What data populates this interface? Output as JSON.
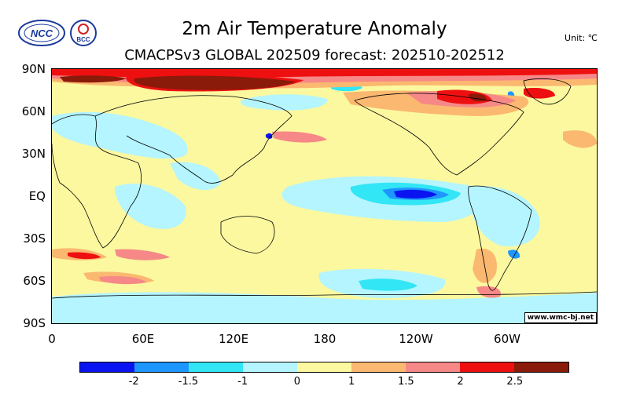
{
  "title": "2m Air Temperature Anomaly",
  "subtitle": "CMACPSv3 GLOBAL 202509 forecast: 202510-202512",
  "unit": "Unit: ℃",
  "credit": "www.wmc-bj.net",
  "logos": {
    "left": "NCC",
    "right": "BCC"
  },
  "y_labels": [
    "90N",
    "60N",
    "30N",
    "EQ",
    "30S",
    "60S",
    "90S"
  ],
  "x_labels": [
    "0",
    "60E",
    "120E",
    "180",
    "120W",
    "60W"
  ],
  "colorbar": {
    "colors": [
      "#0a14f0",
      "#1e96ff",
      "#32e6f5",
      "#b4f5ff",
      "#fbf8a0",
      "#fbb870",
      "#f68888",
      "#ee1010",
      "#8a1a0a"
    ],
    "labels": [
      "-2",
      "-1.5",
      "-1",
      "0",
      "1",
      "1.5",
      "2",
      "2.5"
    ]
  }
}
